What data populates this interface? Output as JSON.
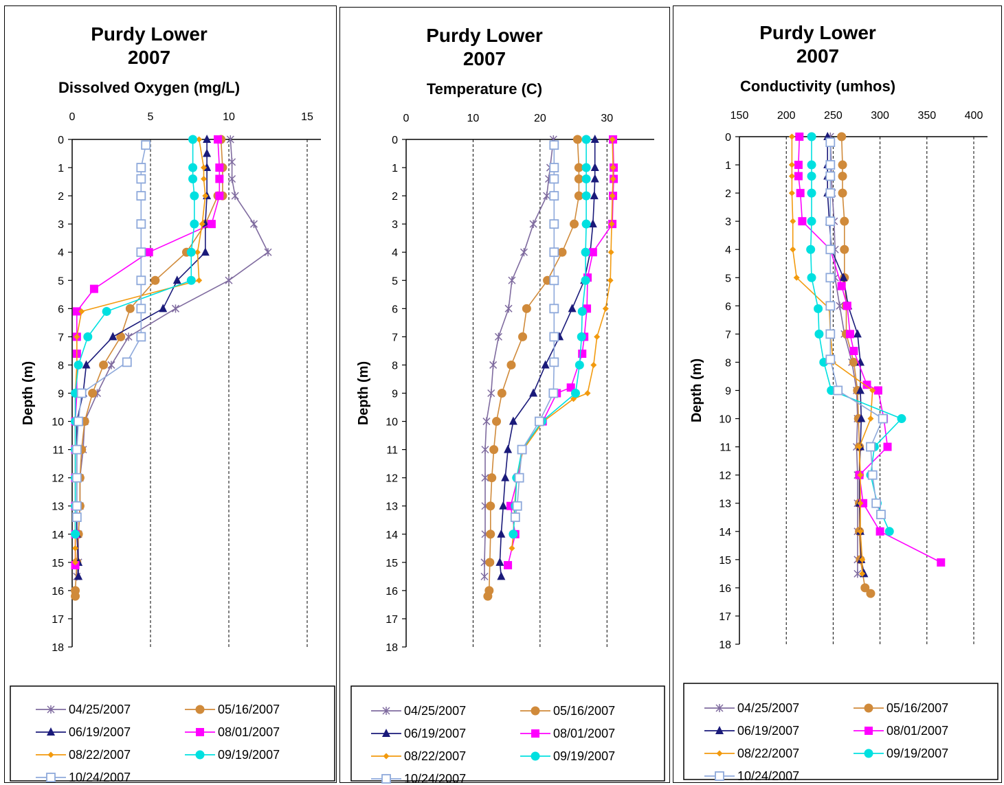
{
  "chart_data": [
    {
      "type": "line",
      "title": "Purdy Lower",
      "title_line2": "2007",
      "xlabel": "Dissolved Oxygen (mg/L)",
      "ylabel": "Depth (m)",
      "xlim": [
        0,
        15
      ],
      "ylim": [
        0,
        18
      ],
      "x_ticks": [
        "0",
        "5",
        "10",
        "15"
      ],
      "y_ticks": [
        "0",
        "1",
        "2",
        "3",
        "4",
        "5",
        "6",
        "7",
        "8",
        "9",
        "10",
        "11",
        "12",
        "13",
        "14",
        "15",
        "16",
        "17",
        "18"
      ],
      "x_axis_position": "top",
      "y_reversed": true,
      "grid": "vertical dashed",
      "legend_position": "bottom",
      "series": [
        {
          "name": "04/25/2007",
          "color": "#7F6B9F",
          "marker": "star",
          "x": [
            10.1,
            10.2,
            10.2,
            10.4,
            11.6,
            12.5,
            10.0,
            6.6,
            3.6,
            2.5,
            1.6,
            0.8,
            0.7,
            0.5,
            0.5,
            0.4,
            0.4,
            0.3
          ],
          "y": [
            0,
            0.8,
            1.4,
            2,
            3,
            4,
            5,
            6,
            7,
            8,
            9,
            10,
            11,
            12,
            13,
            14,
            15,
            15.5
          ]
        },
        {
          "name": "05/16/2007",
          "color": "#D08A3A",
          "marker": "circle",
          "x": [
            9.5,
            9.6,
            9.6,
            9.3,
            8.5,
            7.3,
            5.3,
            3.7,
            3.1,
            2.0,
            1.3,
            0.8,
            0.6,
            0.5,
            0.5,
            0.4,
            0.3,
            0.2,
            0.2
          ],
          "y": [
            0,
            1,
            2,
            2,
            3,
            4,
            5,
            6,
            7,
            8,
            9,
            10,
            11,
            12,
            13,
            14,
            15,
            16,
            16.2
          ]
        },
        {
          "name": "06/19/2007",
          "color": "#1A1A7A",
          "marker": "triangle",
          "x": [
            8.6,
            8.6,
            8.6,
            8.6,
            8.5,
            8.5,
            6.7,
            5.8,
            2.6,
            0.9,
            0.7,
            0.3,
            0.3,
            0.3,
            0.3,
            0.3,
            0.4,
            0.4
          ],
          "y": [
            0,
            0.5,
            1,
            2,
            3,
            4,
            5,
            6,
            7,
            8,
            9,
            10,
            11,
            12,
            13,
            14,
            15,
            15.5
          ]
        },
        {
          "name": "08/01/2007",
          "color": "#FF00FF",
          "marker": "square",
          "x": [
            9.3,
            9.4,
            9.4,
            9.4,
            8.9,
            4.9,
            1.4,
            0.3,
            0.3,
            0.3,
            0.3,
            0.2,
            0.2,
            0.2,
            0.2,
            0.2,
            0.2
          ],
          "y": [
            0,
            1,
            1.4,
            2,
            3,
            4,
            5.3,
            6.1,
            7,
            7.6,
            9,
            10,
            11,
            12,
            13,
            14,
            15.1
          ]
        },
        {
          "name": "08/22/2007",
          "color": "#F29A0E",
          "marker": "diamond",
          "x": [
            8.1,
            8.4,
            8.4,
            8.5,
            8.3,
            8.0,
            8.1,
            0.6,
            0.3,
            0.3,
            0.2,
            0.2,
            0.2,
            0.2,
            0.2,
            0.2,
            0.2,
            0.2
          ],
          "y": [
            0,
            1,
            1.4,
            2,
            3,
            4,
            5,
            6.1,
            7,
            8,
            9,
            10,
            11,
            12,
            13,
            14,
            14.5,
            15
          ]
        },
        {
          "name": "09/19/2007",
          "color": "#00E0E0",
          "marker": "circle",
          "x": [
            7.7,
            7.7,
            7.7,
            7.8,
            7.8,
            7.6,
            7.6,
            2.2,
            1.0,
            0.4,
            0.2,
            0.2,
            0.2,
            0.2,
            0.2,
            0.2
          ],
          "y": [
            0,
            1,
            1.4,
            2,
            3,
            4,
            5,
            6.1,
            7,
            8,
            9,
            10,
            11,
            12,
            13,
            14
          ]
        },
        {
          "name": "10/24/2007",
          "color": "#8EA9DB",
          "marker": "opensquare",
          "x": [
            4.7,
            4.4,
            4.4,
            4.4,
            4.4,
            4.4,
            4.4,
            4.4,
            4.4,
            3.5,
            0.6,
            0.4,
            0.3,
            0.3,
            0.3,
            0.3
          ],
          "y": [
            0.2,
            1,
            1.4,
            2,
            3,
            4,
            5,
            6,
            7,
            7.9,
            9,
            10,
            11,
            12,
            13,
            13.4
          ]
        }
      ]
    },
    {
      "type": "line",
      "title": "Purdy Lower",
      "title_line2": "2007",
      "xlabel": "Temperature (C)",
      "ylabel": "Depth (m)",
      "xlim": [
        0,
        35
      ],
      "ylim": [
        0,
        18
      ],
      "x_ticks": [
        "0",
        "10",
        "20",
        "30"
      ],
      "x_tick_values": [
        0,
        10,
        20,
        30
      ],
      "y_ticks": [
        "0",
        "1",
        "2",
        "3",
        "4",
        "5",
        "6",
        "7",
        "8",
        "9",
        "10",
        "11",
        "12",
        "13",
        "14",
        "15",
        "16",
        "17",
        "18"
      ],
      "x_axis_position": "top",
      "y_reversed": true,
      "grid": "vertical dashed",
      "legend_position": "bottom",
      "series": [
        {
          "name": "04/25/2007",
          "color": "#7F6B9F",
          "marker": "star",
          "x": [
            22.0,
            21.5,
            21.3,
            21.0,
            19.0,
            17.6,
            15.8,
            15.3,
            13.8,
            13.0,
            12.7,
            12.0,
            11.8,
            11.8,
            11.8,
            11.8,
            11.7,
            11.7
          ],
          "y": [
            0,
            1,
            1.4,
            2,
            3,
            4,
            5,
            6,
            7,
            8,
            9,
            10,
            11,
            12,
            13,
            14,
            15,
            15.5
          ]
        },
        {
          "name": "05/16/2007",
          "color": "#D08A3A",
          "marker": "circle",
          "x": [
            25.6,
            25.8,
            25.8,
            25.8,
            25.1,
            23.3,
            21.1,
            18.0,
            17.4,
            15.7,
            14.3,
            13.5,
            13.1,
            12.8,
            12.6,
            12.6,
            12.5,
            12.4,
            12.2
          ],
          "y": [
            0,
            1,
            1.4,
            2,
            3,
            4,
            5,
            6,
            7,
            8,
            9,
            10,
            11,
            12,
            13,
            14,
            15,
            16,
            16.2
          ]
        },
        {
          "name": "06/19/2007",
          "color": "#1A1A7A",
          "marker": "triangle",
          "x": [
            28.2,
            28.2,
            28.2,
            28.1,
            27.9,
            27.5,
            26.6,
            24.8,
            22.9,
            20.8,
            19.0,
            16.0,
            15.2,
            14.8,
            14.5,
            14.2,
            14.0,
            14.2
          ],
          "y": [
            0,
            1,
            1.4,
            2,
            3,
            4,
            5,
            6,
            7,
            8,
            9,
            10,
            11,
            12,
            13,
            14,
            15,
            15.5
          ]
        },
        {
          "name": "08/01/2007",
          "color": "#FF00FF",
          "marker": "square",
          "x": [
            30.9,
            31.0,
            31.0,
            30.9,
            30.8,
            27.9,
            27.1,
            27.0,
            26.6,
            26.3,
            24.6,
            22.5,
            20.4,
            17.4,
            16.7,
            15.6,
            16.3,
            15.2
          ],
          "y": [
            0,
            1,
            1.4,
            2,
            3,
            4,
            4.9,
            6,
            7,
            7.6,
            8.8,
            9,
            10,
            11,
            12,
            13,
            14,
            15.1
          ]
        },
        {
          "name": "08/22/2007",
          "color": "#F29A0E",
          "marker": "diamond",
          "x": [
            30.8,
            30.9,
            30.9,
            30.8,
            30.7,
            30.6,
            30.5,
            29.8,
            28.5,
            28.0,
            27.1,
            25.0,
            20.5,
            17.5,
            16.5,
            16.2,
            16.0,
            15.8
          ],
          "y": [
            0,
            1,
            1.4,
            2,
            3,
            4,
            5,
            6,
            7,
            8,
            9,
            9.2,
            10,
            11,
            12,
            13,
            14,
            14.5
          ]
        },
        {
          "name": "09/19/2007",
          "color": "#00E0E0",
          "marker": "circle",
          "x": [
            26.9,
            26.9,
            26.9,
            26.9,
            26.9,
            26.8,
            26.8,
            26.3,
            26.2,
            25.9,
            25.3,
            20.3,
            17.3,
            16.5,
            16.3,
            16.0
          ],
          "y": [
            0,
            1,
            1.4,
            2,
            3,
            4,
            5,
            6.1,
            7,
            8,
            9,
            10,
            11,
            12,
            13,
            14
          ]
        },
        {
          "name": "10/24/2007",
          "color": "#8EA9DB",
          "marker": "opensquare",
          "x": [
            22.1,
            22.1,
            22.1,
            22.1,
            22.1,
            22.1,
            22.1,
            22.1,
            22.1,
            22.1,
            22.0,
            19.9,
            17.3,
            16.9,
            16.6,
            16.3
          ],
          "y": [
            0.2,
            1,
            1.4,
            2,
            3,
            4,
            5,
            6,
            7,
            7.9,
            9,
            10,
            11,
            12,
            13,
            13.4
          ]
        }
      ]
    },
    {
      "type": "line",
      "title": "Purdy Lower",
      "title_line2": "2007",
      "xlabel": "Conductivity (umhos)",
      "ylabel": "Depth (m)",
      "xlim": [
        150,
        400
      ],
      "ylim": [
        0,
        18
      ],
      "x_ticks": [
        "150",
        "200",
        "250",
        "300",
        "350",
        "400"
      ],
      "y_ticks": [
        "0",
        "1",
        "2",
        "3",
        "4",
        "5",
        "6",
        "7",
        "8",
        "9",
        "10",
        "11",
        "12",
        "13",
        "14",
        "15",
        "16",
        "17",
        "18"
      ],
      "x_axis_position": "top",
      "y_reversed": true,
      "grid": "vertical dashed",
      "legend_position": "bottom",
      "series": [
        {
          "name": "04/25/2007",
          "color": "#7F6B9F",
          "marker": "star",
          "x": [
            247,
            248,
            248,
            249,
            251,
            252,
            252,
            257,
            262,
            270,
            275,
            276,
            275,
            276,
            276,
            276,
            276,
            276
          ],
          "y": [
            0,
            1,
            1.4,
            2,
            3,
            4,
            5,
            6,
            7,
            8,
            9,
            10,
            11,
            12,
            13,
            14,
            15,
            15.5
          ]
        },
        {
          "name": "05/16/2007",
          "color": "#D08A3A",
          "marker": "circle",
          "x": [
            259,
            260,
            260,
            260,
            262,
            262,
            262,
            264,
            264,
            272,
            276,
            277,
            278,
            278,
            278,
            278,
            279,
            284,
            290
          ],
          "y": [
            0,
            1,
            1.4,
            2,
            3,
            4,
            5,
            6,
            7,
            8,
            9,
            10,
            11,
            12,
            13,
            14,
            15,
            16,
            16.2
          ]
        },
        {
          "name": "06/19/2007",
          "color": "#1A1A7A",
          "marker": "triangle",
          "x": [
            244,
            244,
            244,
            244,
            246,
            248,
            261,
            266,
            276,
            279,
            279,
            280,
            279,
            278,
            278,
            279,
            280,
            283
          ],
          "y": [
            0,
            1,
            1.4,
            2,
            3,
            4,
            5,
            6,
            7,
            8,
            9,
            10,
            11,
            12,
            13,
            14,
            15,
            15.5
          ]
        },
        {
          "name": "08/01/2007",
          "color": "#FF00FF",
          "marker": "square",
          "x": [
            214,
            213,
            213,
            215,
            217,
            247,
            259,
            265,
            268,
            272,
            286,
            298,
            304,
            308,
            278,
            282,
            300,
            365
          ],
          "y": [
            0,
            1,
            1.4,
            2,
            3,
            4,
            5.3,
            6,
            7,
            7.6,
            8.8,
            9,
            10,
            11,
            12,
            13,
            14,
            15.1
          ]
        },
        {
          "name": "08/22/2007",
          "color": "#F29A0E",
          "marker": "diamond",
          "x": [
            206,
            206,
            206,
            206,
            207,
            207,
            211,
            246,
            247,
            250,
            292,
            290,
            278,
            279,
            279,
            279,
            281,
            281
          ],
          "y": [
            0,
            1,
            1.4,
            2,
            3,
            4,
            5,
            6.1,
            7,
            8,
            9,
            10,
            11,
            12,
            13,
            14,
            15,
            15.5
          ]
        },
        {
          "name": "09/19/2007",
          "color": "#00E0E0",
          "marker": "circle",
          "x": [
            227,
            227,
            227,
            227,
            227,
            226,
            227,
            234,
            235,
            240,
            248,
            323,
            294,
            290,
            297,
            310
          ],
          "y": [
            0,
            1,
            1.4,
            2,
            3,
            4,
            5,
            6.1,
            7,
            8,
            9,
            10,
            11,
            12,
            13,
            14
          ]
        },
        {
          "name": "10/24/2007",
          "color": "#8EA9DB",
          "marker": "opensquare",
          "x": [
            247,
            247,
            247,
            247,
            247,
            247,
            247,
            247,
            247,
            247,
            255,
            303,
            290,
            292,
            296,
            301
          ],
          "y": [
            0.2,
            1,
            1.4,
            2,
            3,
            4,
            5,
            6,
            7,
            7.9,
            9,
            10,
            11,
            12,
            13,
            13.4
          ]
        }
      ]
    }
  ]
}
